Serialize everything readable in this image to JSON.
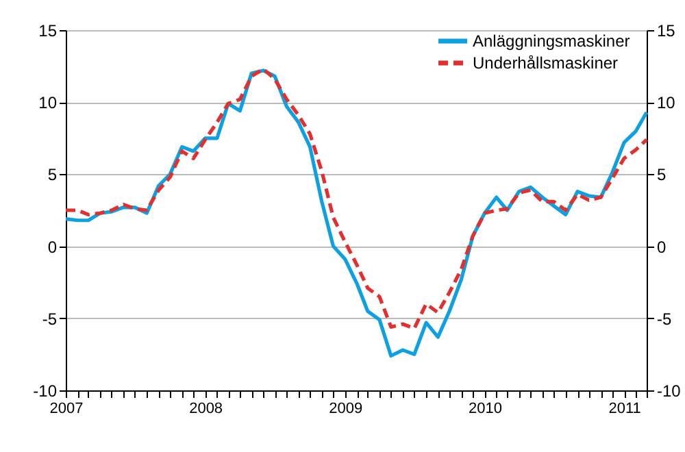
{
  "chart_data": {
    "type": "line",
    "x": [
      "2007-01",
      "2007-02",
      "2007-03",
      "2007-04",
      "2007-05",
      "2007-06",
      "2007-07",
      "2007-08",
      "2007-09",
      "2007-10",
      "2007-11",
      "2007-12",
      "2008-01",
      "2008-02",
      "2008-03",
      "2008-04",
      "2008-05",
      "2008-06",
      "2008-07",
      "2008-08",
      "2008-09",
      "2008-10",
      "2008-11",
      "2008-12",
      "2009-01",
      "2009-02",
      "2009-03",
      "2009-04",
      "2009-05",
      "2009-06",
      "2009-07",
      "2009-08",
      "2009-09",
      "2009-10",
      "2009-11",
      "2009-12",
      "2010-01",
      "2010-02",
      "2010-03",
      "2010-04",
      "2010-05",
      "2010-06",
      "2010-07",
      "2010-08",
      "2010-09",
      "2010-10",
      "2010-11",
      "2010-12",
      "2011-01",
      "2011-02",
      "2011-03"
    ],
    "series": [
      {
        "name": "Anläggningsmaskiner",
        "color": "#0ea0e0",
        "line_style": "solid",
        "values": [
          1.9,
          1.8,
          1.8,
          2.3,
          2.4,
          2.7,
          2.7,
          2.3,
          4.2,
          5.0,
          6.9,
          6.6,
          7.5,
          7.5,
          9.9,
          9.4,
          12.0,
          12.2,
          11.8,
          9.7,
          8.6,
          6.9,
          3.1,
          0.0,
          -0.9,
          -2.6,
          -4.5,
          -5.1,
          -7.6,
          -7.2,
          -7.5,
          -5.3,
          -6.3,
          -4.5,
          -2.3,
          0.7,
          2.3,
          3.4,
          2.5,
          3.8,
          4.1,
          3.4,
          2.8,
          2.2,
          3.8,
          3.5,
          3.4,
          5.1,
          7.2,
          8.0,
          9.3
        ]
      },
      {
        "name": "Underhållsmaskiner",
        "color": "#e0302f",
        "line_style": "dashed",
        "values": [
          2.5,
          2.5,
          2.2,
          2.3,
          2.5,
          2.9,
          2.6,
          2.5,
          3.9,
          4.8,
          6.6,
          6.1,
          7.4,
          8.6,
          9.9,
          10.2,
          11.8,
          12.3,
          11.6,
          10.2,
          9.1,
          7.8,
          5.2,
          2.0,
          0.3,
          -1.3,
          -2.9,
          -3.5,
          -5.6,
          -5.4,
          -5.7,
          -4.0,
          -4.6,
          -3.2,
          -1.6,
          0.7,
          2.3,
          2.5,
          2.6,
          3.7,
          3.9,
          3.1,
          3.1,
          2.5,
          3.6,
          3.2,
          3.4,
          4.7,
          6.1,
          6.7,
          7.4
        ]
      }
    ],
    "xlim": [
      "2007-01",
      "2011-03"
    ],
    "xticks": [
      {
        "value": "2007-01",
        "label": "2007"
      },
      {
        "value": "2007-02",
        "label": null
      },
      {
        "value": "2007-03",
        "label": null
      },
      {
        "value": "2007-04",
        "label": null
      },
      {
        "value": "2007-05",
        "label": null
      },
      {
        "value": "2007-06",
        "label": null
      },
      {
        "value": "2007-07",
        "label": null
      },
      {
        "value": "2007-08",
        "label": null
      },
      {
        "value": "2007-09",
        "label": null
      },
      {
        "value": "2007-10",
        "label": null
      },
      {
        "value": "2007-11",
        "label": null
      },
      {
        "value": "2007-12",
        "label": null
      },
      {
        "value": "2008-01",
        "label": "2008"
      },
      {
        "value": "2008-02",
        "label": null
      },
      {
        "value": "2008-03",
        "label": null
      },
      {
        "value": "2008-04",
        "label": null
      },
      {
        "value": "2008-05",
        "label": null
      },
      {
        "value": "2008-06",
        "label": null
      },
      {
        "value": "2008-07",
        "label": null
      },
      {
        "value": "2008-08",
        "label": null
      },
      {
        "value": "2008-09",
        "label": null
      },
      {
        "value": "2008-10",
        "label": null
      },
      {
        "value": "2008-11",
        "label": null
      },
      {
        "value": "2008-12",
        "label": null
      },
      {
        "value": "2009-01",
        "label": "2009"
      },
      {
        "value": "2009-02",
        "label": null
      },
      {
        "value": "2009-03",
        "label": null
      },
      {
        "value": "2009-04",
        "label": null
      },
      {
        "value": "2009-05",
        "label": null
      },
      {
        "value": "2009-06",
        "label": null
      },
      {
        "value": "2009-07",
        "label": null
      },
      {
        "value": "2009-08",
        "label": null
      },
      {
        "value": "2009-09",
        "label": null
      },
      {
        "value": "2009-10",
        "label": null
      },
      {
        "value": "2009-11",
        "label": null
      },
      {
        "value": "2009-12",
        "label": null
      },
      {
        "value": "2010-01",
        "label": "2010"
      },
      {
        "value": "2010-02",
        "label": null
      },
      {
        "value": "2010-03",
        "label": null
      },
      {
        "value": "2010-04",
        "label": null
      },
      {
        "value": "2010-05",
        "label": null
      },
      {
        "value": "2010-06",
        "label": null
      },
      {
        "value": "2010-07",
        "label": null
      },
      {
        "value": "2010-08",
        "label": null
      },
      {
        "value": "2010-09",
        "label": null
      },
      {
        "value": "2010-10",
        "label": null
      },
      {
        "value": "2010-11",
        "label": null
      },
      {
        "value": "2010-12",
        "label": null
      },
      {
        "value": "2011-01",
        "label": "2011"
      },
      {
        "value": "2011-02",
        "label": null
      },
      {
        "value": "2011-03",
        "label": null
      }
    ],
    "ylim": [
      -10,
      15
    ],
    "yticks": [
      -10,
      -5,
      0,
      5,
      10,
      15
    ],
    "y2lim": [
      -10,
      15
    ],
    "y2ticks": [
      -10,
      -5,
      0,
      5,
      10,
      15
    ],
    "grid": "y",
    "legend": "top right",
    "marker": "none"
  }
}
